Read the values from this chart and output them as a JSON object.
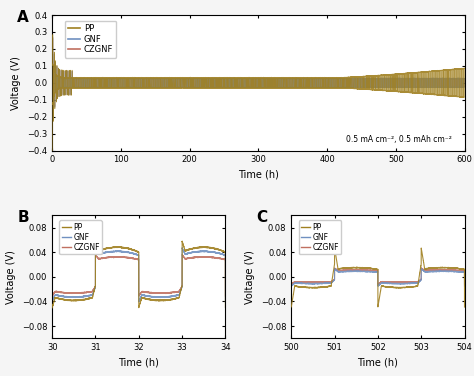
{
  "title_A": "A",
  "title_B": "B",
  "title_C": "C",
  "colors": {
    "PP": "#a08020",
    "GNF": "#7090c0",
    "CZGNF": "#c07060"
  },
  "annotation": "0.5 mA cm⁻², 0.5 mAh cm⁻²",
  "panel_A": {
    "xlim": [
      0,
      600
    ],
    "ylim": [
      -0.4,
      0.4
    ],
    "xticks": [
      0,
      100,
      200,
      300,
      400,
      500,
      600
    ],
    "yticks": [
      -0.4,
      -0.3,
      -0.2,
      -0.1,
      0.0,
      0.1,
      0.2,
      0.3,
      0.4
    ],
    "xlabel": "Time (h)",
    "ylabel": "Voltage (V)"
  },
  "panel_B": {
    "xlim": [
      30,
      34
    ],
    "ylim": [
      -0.1,
      0.1
    ],
    "xticks": [
      30,
      31,
      32,
      33,
      34
    ],
    "yticks": [
      -0.08,
      -0.04,
      0.0,
      0.04,
      0.08
    ],
    "xlabel": "Time (h)",
    "ylabel": "Voltage (V)"
  },
  "panel_C": {
    "xlim": [
      500,
      504
    ],
    "ylim": [
      -0.1,
      0.1
    ],
    "xticks": [
      500,
      501,
      502,
      503,
      504
    ],
    "yticks": [
      -0.08,
      -0.04,
      0.0,
      0.04,
      0.08
    ],
    "xlabel": "Time (h)",
    "ylabel": "Voltage (V)"
  }
}
